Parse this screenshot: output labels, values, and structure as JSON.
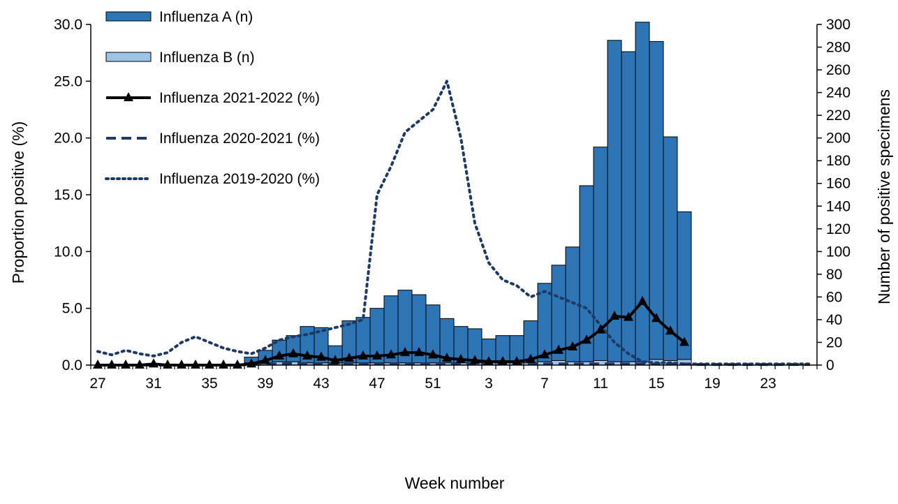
{
  "chart_data": {
    "type": "bar+line",
    "xlabel": "Week number",
    "ylabel_left": "Proportion positive (%)",
    "ylabel_right": "Number of positive specimens",
    "ylim_left": [
      0,
      30
    ],
    "ylim_right": [
      0,
      300
    ],
    "yticks_left": [
      "0.0",
      "5.0",
      "10.0",
      "15.0",
      "20.0",
      "25.0",
      "30.0"
    ],
    "yticks_right": [
      "0",
      "20",
      "40",
      "60",
      "80",
      "100",
      "120",
      "140",
      "160",
      "180",
      "200",
      "220",
      "240",
      "260",
      "280",
      "300"
    ],
    "weeks": [
      27,
      28,
      29,
      30,
      31,
      32,
      33,
      34,
      35,
      36,
      37,
      38,
      39,
      40,
      41,
      42,
      43,
      44,
      45,
      46,
      47,
      48,
      49,
      50,
      51,
      52,
      1,
      2,
      3,
      4,
      5,
      6,
      7,
      8,
      9,
      10,
      11,
      12,
      13,
      14,
      15,
      16,
      17,
      18,
      19,
      20,
      21,
      22,
      23,
      24,
      25,
      26
    ],
    "week_tick_labels": [
      "27",
      "31",
      "35",
      "39",
      "43",
      "47",
      "51",
      "3",
      "7",
      "11",
      "15",
      "19",
      "23"
    ],
    "legend_position": "top-left",
    "series": [
      {
        "name": "Influenza A (n)",
        "kind": "stacked-bar",
        "axis": "right",
        "color": "#2E75B6",
        "values": [
          0,
          0,
          0,
          0,
          0,
          0,
          0,
          0,
          0,
          0,
          0,
          5,
          11,
          19,
          23,
          32,
          31,
          15,
          37,
          40,
          48,
          59,
          64,
          60,
          51,
          39,
          32,
          30,
          21,
          24,
          24,
          37,
          69,
          84,
          101,
          155,
          188,
          283,
          273,
          299,
          280,
          197,
          130,
          0,
          0,
          0,
          0,
          0,
          0,
          0,
          0,
          0
        ]
      },
      {
        "name": "Influenza B (n)",
        "kind": "stacked-bar",
        "axis": "right",
        "color": "#9DC3E6",
        "values": [
          0,
          0,
          0,
          0,
          0,
          0,
          0,
          0,
          0,
          0,
          0,
          2,
          2,
          3,
          3,
          2,
          2,
          2,
          2,
          2,
          2,
          2,
          2,
          2,
          2,
          2,
          2,
          2,
          2,
          2,
          2,
          2,
          3,
          4,
          3,
          3,
          4,
          3,
          3,
          3,
          5,
          4,
          5,
          0,
          0,
          0,
          0,
          0,
          0,
          0,
          0,
          0
        ]
      },
      {
        "name": "Influenza 2021-2022 (%)",
        "kind": "line-marker",
        "axis": "left",
        "color": "#000000",
        "values": [
          0,
          0,
          0,
          0,
          0.1,
          0,
          0,
          0,
          0,
          0,
          0,
          0.1,
          0.4,
          0.8,
          1.0,
          0.8,
          0.7,
          0.4,
          0.6,
          0.8,
          0.8,
          0.9,
          1.1,
          1.1,
          0.9,
          0.6,
          0.5,
          0.4,
          0.3,
          0.3,
          0.3,
          0.5,
          0.9,
          1.3,
          1.6,
          2.2,
          3.1,
          4.3,
          4.2,
          5.6,
          4.1,
          3.0,
          2.0
        ]
      },
      {
        "name": "Influenza 2020-2021 (%)",
        "kind": "dashed-line",
        "axis": "left",
        "color": "#1F3864",
        "values": [
          0,
          0,
          0,
          0,
          0,
          0,
          0,
          0,
          0,
          0,
          0,
          0.05,
          0.1,
          0.1,
          0.15,
          0.1,
          0.1,
          0.1,
          0.1,
          0.1,
          0.1,
          0.1,
          0.1,
          0.1,
          0.1,
          0.1,
          0.1,
          0.1,
          0.1,
          0.1,
          0.1,
          0.1,
          0.1,
          0.1,
          0.1,
          0.1,
          0.1,
          0.1,
          0.1,
          0.1,
          0.1,
          0.1,
          0.1,
          0.05,
          0.05,
          0.05,
          0.05,
          0.05,
          0.05,
          0.05,
          0.05,
          0.05
        ]
      },
      {
        "name": "Influenza 2019-2020 (%)",
        "kind": "dotted-line",
        "axis": "left",
        "color": "#1F3864",
        "values": [
          1.2,
          0.9,
          1.3,
          1.0,
          0.8,
          1.1,
          2.0,
          2.5,
          2.0,
          1.5,
          1.2,
          1.0,
          1.5,
          2.2,
          2.5,
          2.7,
          3.0,
          3.3,
          3.6,
          4.0,
          15.0,
          17.5,
          20.5,
          21.5,
          22.5,
          25.0,
          20.0,
          12.5,
          9.0,
          7.5,
          7.0,
          6.0,
          6.5,
          6.0,
          5.5,
          5.0,
          3.5,
          2.0,
          1.0,
          0.3,
          0.2,
          0.2,
          0.1,
          0.1,
          0.1,
          0.1,
          0.1,
          0.1,
          0.1,
          0.1,
          0.1,
          0.1
        ]
      }
    ]
  }
}
